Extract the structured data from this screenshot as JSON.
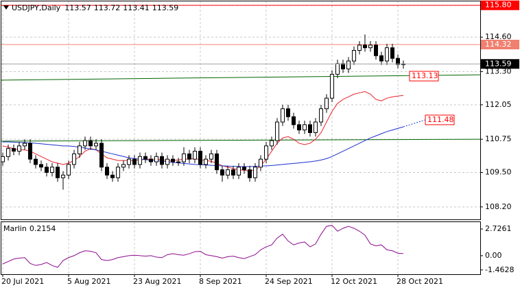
{
  "chart_data": [
    {
      "type": "candlestick",
      "title": "USDJPY,Daily",
      "categories": [
        "20 Jul 2021",
        null,
        null,
        null,
        null,
        null,
        null,
        null,
        null,
        null,
        null,
        null,
        "5 Aug 2021",
        null,
        null,
        null,
        null,
        null,
        null,
        null,
        null,
        null,
        null,
        null,
        "23 Aug 2021",
        null,
        null,
        null,
        null,
        null,
        null,
        null,
        null,
        null,
        null,
        null,
        "8 Sep 2021",
        null,
        null,
        null,
        null,
        null,
        null,
        null,
        null,
        null,
        null,
        null,
        "24 Sep 2021",
        null,
        null,
        null,
        null,
        null,
        null,
        null,
        null,
        null,
        null,
        null,
        "12 Oct 2021",
        null,
        null,
        null,
        null,
        null,
        null,
        null,
        null,
        null,
        null,
        null,
        "28 Oct 2021",
        null
      ],
      "open": [
        109.9,
        110.1,
        110.4,
        110.3,
        110.5,
        110.6,
        110.0,
        109.8,
        109.7,
        109.5,
        109.7,
        109.3,
        109.4,
        109.8,
        110.2,
        110.5,
        110.7,
        110.5,
        110.6,
        109.7,
        109.4,
        109.3,
        109.7,
        109.8,
        110.0,
        109.8,
        110.1,
        110.0,
        109.9,
        110.1,
        109.8,
        110.0,
        109.9,
        109.9,
        110.2,
        110.0,
        110.3,
        109.8,
        110.0,
        110.2,
        109.6,
        109.4,
        109.6,
        109.4,
        109.7,
        109.6,
        109.3,
        109.7,
        110.0,
        110.5,
        110.7,
        111.4,
        111.9,
        111.6,
        111.3,
        111.1,
        111.3,
        111.0,
        111.4,
        111.9,
        112.3,
        113.2,
        113.6,
        113.4,
        113.7,
        114.1,
        114.3,
        114.2,
        114.3,
        113.9,
        113.7,
        114.2,
        113.8,
        113.57
      ],
      "high": [
        110.25,
        110.55,
        110.55,
        110.65,
        110.75,
        110.75,
        110.15,
        109.95,
        109.85,
        109.85,
        109.85,
        109.55,
        109.95,
        110.35,
        110.65,
        110.85,
        110.85,
        110.75,
        110.75,
        109.85,
        109.55,
        109.85,
        109.95,
        110.15,
        110.15,
        110.25,
        110.25,
        110.15,
        110.25,
        110.25,
        110.15,
        110.15,
        110.05,
        110.45,
        110.35,
        110.45,
        110.45,
        110.15,
        110.35,
        110.35,
        109.75,
        109.75,
        109.75,
        109.85,
        109.85,
        109.75,
        109.85,
        110.15,
        110.65,
        110.85,
        111.55,
        112.05,
        112.05,
        111.75,
        111.45,
        111.45,
        111.45,
        111.55,
        112.05,
        112.45,
        113.35,
        113.75,
        113.75,
        113.85,
        114.25,
        114.45,
        114.7,
        114.45,
        114.45,
        114.05,
        114.35,
        114.35,
        113.95,
        113.72
      ],
      "low": [
        109.75,
        109.95,
        110.15,
        110.15,
        110.35,
        109.85,
        109.65,
        109.55,
        109.35,
        109.35,
        109.15,
        108.85,
        109.25,
        109.65,
        110.05,
        110.35,
        110.35,
        110.35,
        109.55,
        109.25,
        109.15,
        109.15,
        109.55,
        109.65,
        109.65,
        109.65,
        109.85,
        109.75,
        109.75,
        109.65,
        109.65,
        109.75,
        109.75,
        109.75,
        109.85,
        109.85,
        109.65,
        109.65,
        109.85,
        109.45,
        109.15,
        109.25,
        109.25,
        109.25,
        109.45,
        109.15,
        109.15,
        109.55,
        109.85,
        110.35,
        110.55,
        111.25,
        111.45,
        111.15,
        110.95,
        110.95,
        110.85,
        110.85,
        111.25,
        111.75,
        112.15,
        113.05,
        113.25,
        113.25,
        113.55,
        113.95,
        114.05,
        114.05,
        113.75,
        113.55,
        113.55,
        113.65,
        113.42,
        113.41
      ],
      "close": [
        110.1,
        110.4,
        110.3,
        110.5,
        110.6,
        110.0,
        109.8,
        109.7,
        109.5,
        109.7,
        109.3,
        109.4,
        109.8,
        110.2,
        110.5,
        110.7,
        110.5,
        110.6,
        109.7,
        109.4,
        109.3,
        109.7,
        109.8,
        110.0,
        109.8,
        110.1,
        110.0,
        109.9,
        110.1,
        109.8,
        110.0,
        109.9,
        109.9,
        110.2,
        110.0,
        110.3,
        109.8,
        110.0,
        110.2,
        109.6,
        109.4,
        109.6,
        109.4,
        109.7,
        109.6,
        109.3,
        109.7,
        110.0,
        110.5,
        110.7,
        111.4,
        111.9,
        111.6,
        111.3,
        111.1,
        111.3,
        111.0,
        111.4,
        111.9,
        112.3,
        113.2,
        113.6,
        113.4,
        113.7,
        114.1,
        114.3,
        114.2,
        114.3,
        113.9,
        113.7,
        114.2,
        113.8,
        113.57,
        113.59
      ],
      "series": [
        {
          "color": "#e8202a",
          "values": [
            110.5,
            110.45,
            110.4,
            110.35,
            110.35,
            110.3,
            110.2,
            110.1,
            110.0,
            109.9,
            109.85,
            109.8,
            109.85,
            109.95,
            110.1,
            110.3,
            110.4,
            110.35,
            110.2,
            110.05,
            110.0,
            109.95,
            109.95,
            109.95,
            109.95,
            109.97,
            110.0,
            110.0,
            110.0,
            109.98,
            109.95,
            109.95,
            109.97,
            110.0,
            110.0,
            110.02,
            109.98,
            109.95,
            109.92,
            109.85,
            109.75,
            109.7,
            109.65,
            109.6,
            109.58,
            109.55,
            109.6,
            109.75,
            110.0,
            110.3,
            110.6,
            110.8,
            110.85,
            110.75,
            110.6,
            110.55,
            110.6,
            110.75,
            111.0,
            111.4,
            111.8,
            112.1,
            112.25,
            112.35,
            112.45,
            112.5,
            112.55,
            112.45,
            112.25,
            112.2,
            112.3,
            112.35,
            112.38,
            112.4
          ]
        },
        {
          "color": "#1c2fd0",
          "values": [
            110.65,
            110.65,
            110.64,
            110.63,
            110.62,
            110.61,
            110.6,
            110.58,
            110.56,
            110.54,
            110.52,
            110.5,
            110.5,
            110.48,
            110.45,
            110.42,
            110.38,
            110.35,
            110.3,
            110.25,
            110.2,
            110.15,
            110.1,
            110.05,
            110.02,
            110.0,
            109.98,
            109.96,
            109.94,
            109.92,
            109.9,
            109.88,
            109.86,
            109.84,
            109.82,
            109.8,
            109.79,
            109.78,
            109.77,
            109.76,
            109.75,
            109.74,
            109.73,
            109.72,
            109.72,
            109.72,
            109.73,
            109.74,
            109.75,
            109.76,
            109.78,
            109.8,
            109.82,
            109.84,
            109.86,
            109.88,
            109.9,
            109.93,
            109.97,
            110.02,
            110.1,
            110.2,
            110.3,
            110.4,
            110.5,
            110.6,
            110.7,
            110.8,
            110.88,
            110.96,
            111.04,
            111.1,
            111.16,
            111.22
          ]
        }
      ],
      "trend_lines": [
        {
          "color": "#006400",
          "values": [
            112.98,
            113.18
          ]
        },
        {
          "color": "#006400",
          "values": [
            110.68,
            110.75
          ]
        }
      ],
      "levels": [
        {
          "value": 115.8,
          "label": "115.80",
          "color": "#ff0000"
        },
        {
          "value": 114.32,
          "label": "114.32",
          "color": "#f08070"
        }
      ],
      "annotations": [
        {
          "value": 113.13,
          "color": "#ff0000"
        },
        {
          "value": 111.48,
          "color": "#ff0000",
          "series": 1
        }
      ],
      "ylim": [
        107.73,
        116.0
      ],
      "yticks": [
        {
          "value": 115.8,
          "label": "115.80"
        },
        {
          "value": 114.6,
          "label": "114.60"
        },
        {
          "value": 113.3,
          "label": "113.30"
        },
        112.05,
        110.75,
        {
          "value": 109.5,
          "label": "109.50"
        },
        {
          "value": 108.2,
          "label": "108.20"
        }
      ],
      "grid": true
    },
    {
      "type": "line",
      "title": "Marlin",
      "color": "#8b0a8b",
      "values": [
        -0.84,
        -0.6,
        -0.35,
        -0.25,
        -0.2,
        -0.8,
        -1.0,
        -0.9,
        -0.7,
        -1.0,
        -1.2,
        -0.5,
        -0.2,
        0.0,
        0.3,
        0.5,
        0.45,
        0.3,
        -0.4,
        -0.5,
        -0.4,
        -0.2,
        -0.1,
        0.0,
        0.05,
        0.0,
        -0.05,
        0.0,
        -0.15,
        -0.2,
        0.1,
        0.2,
        0.1,
        0.05,
        0.2,
        0.4,
        0.45,
        0.1,
        0.0,
        -0.1,
        -0.25,
        -0.1,
        -0.05,
        -0.2,
        -0.3,
        -0.1,
        0.1,
        0.6,
        0.9,
        1.1,
        1.8,
        2.2,
        1.5,
        1.1,
        1.3,
        1.4,
        0.9,
        1.2,
        2.2,
        3.0,
        3.1,
        2.5,
        2.8,
        3.0,
        2.8,
        2.5,
        2.1,
        1.2,
        1.0,
        1.1,
        0.6,
        0.5,
        0.25,
        0.2154
      ],
      "ylim": [
        -1.9,
        3.5
      ],
      "yticks": [
        2.7261,
        {
          "value": 0,
          "label": "0.00"
        },
        -1.4628
      ]
    }
  ]
}
